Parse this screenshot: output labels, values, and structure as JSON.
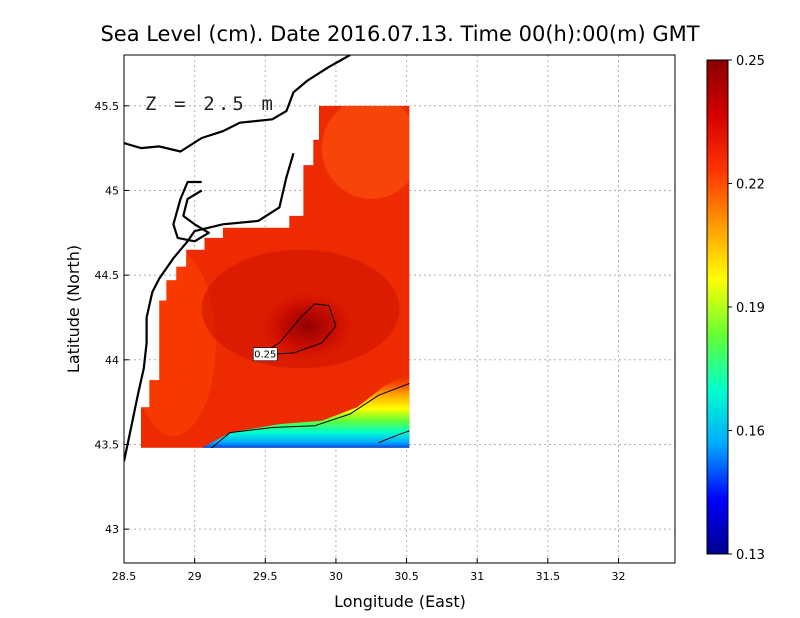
{
  "chart_data": {
    "type": "heatmap",
    "title": "Sea Level (cm). Date 2016.07.13. Time 00(h):00(m) GMT",
    "xlabel": "Longitude (East)",
    "ylabel": "Latitude (North)",
    "annotation": "Z = 2.5 m",
    "xlim": [
      28.5,
      32.4
    ],
    "ylim": [
      42.8,
      45.8
    ],
    "xticks": [
      28.5,
      29,
      29.5,
      30,
      30.5,
      31,
      31.5,
      32
    ],
    "xtick_labels": [
      "28.5",
      "29",
      "29.5",
      "30",
      "30.5",
      "31",
      "31.5",
      "32"
    ],
    "yticks": [
      43,
      43.5,
      44,
      44.5,
      45,
      45.5
    ],
    "ytick_labels": [
      "43",
      "43.5",
      "44",
      "44.5",
      "45",
      "45.5"
    ],
    "grid": true,
    "colorbar": {
      "min": 0.13,
      "max": 0.25,
      "ticks": [
        0.13,
        0.16,
        0.19,
        0.22,
        0.25
      ],
      "tick_labels": [
        "0.13",
        "0.16",
        "0.19",
        "0.22",
        "0.25"
      ],
      "colors": [
        "#00008b",
        "#0000ff",
        "#00aaff",
        "#00ffcc",
        "#66ff33",
        "#ffff00",
        "#ff9900",
        "#ff3300",
        "#d40000",
        "#8b0000"
      ]
    },
    "contour_levels": [
      {
        "value": 0.25,
        "label": "0.25"
      },
      {
        "value": 0.19,
        "label": ""
      },
      {
        "value": 0.16,
        "label": ""
      }
    ],
    "field": {
      "domain": {
        "lon": [
          28.62,
          30.52
        ],
        "lat": [
          43.48,
          45.5
        ]
      },
      "background": 0.228,
      "peak": {
        "lon": 29.8,
        "lat": 44.2,
        "value": 0.252
      },
      "south_gradient_to": 0.135
    },
    "coastline": "Black Sea NW shelf (Romania / Bulgaria coast)"
  }
}
